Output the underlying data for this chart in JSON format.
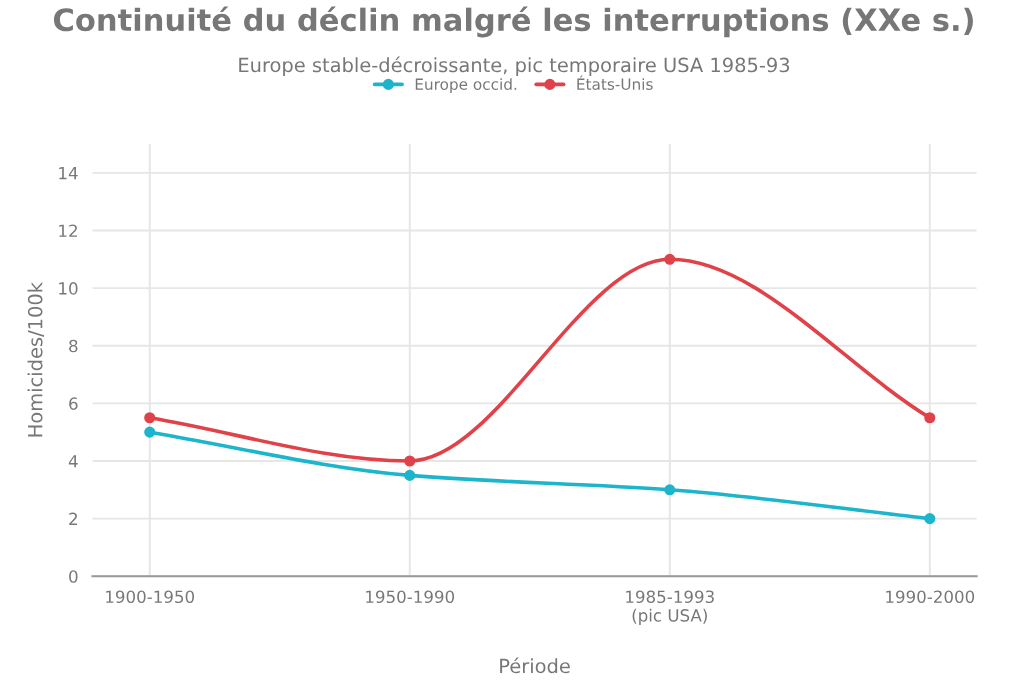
{
  "chart_data": {
    "type": "line",
    "title": "Continuité du déclin malgré les interruptions (XXe s.)",
    "subtitle": "Europe stable-décroissante, pic temporaire USA 1985-93",
    "xlabel": "Période",
    "ylabel": "Homicides/100k",
    "categories": [
      "1900-1950",
      "1950-1990",
      "1985-1993\n(pic USA)",
      "1990-2000"
    ],
    "series": [
      {
        "name": "Europe occid.",
        "color": "#1cb5cc",
        "values": [
          5,
          3.5,
          3,
          2
        ]
      },
      {
        "name": "États-Unis",
        "color": "#e0424a",
        "values": [
          5.5,
          4,
          11,
          5.5
        ]
      }
    ],
    "ylim": [
      0,
      15
    ],
    "yticks": [
      0,
      2,
      4,
      6,
      8,
      10,
      12,
      14
    ],
    "grid": true,
    "legend": "top",
    "marker": "circle",
    "line_style": "solid"
  }
}
